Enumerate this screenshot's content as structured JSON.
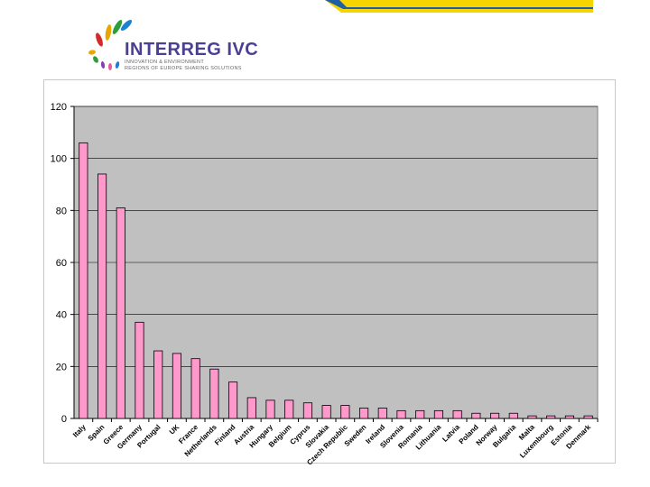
{
  "logo": {
    "name": "INTERREG IVC",
    "tagline_1": "INNOVATION & ENVIRONMENT",
    "tagline_2": "REGIONS OF EUROPE SHARING SOLUTIONS"
  },
  "colors": {
    "plot_background": "#c0c0c0",
    "bar_fill": "#ff99cc",
    "bar_stroke": "#000000",
    "band_yellow": "#f5d400",
    "band_blue": "#1f5fa6"
  },
  "chart_data": {
    "type": "bar",
    "title": "",
    "xlabel": "",
    "ylabel": "",
    "ylim": [
      0,
      120
    ],
    "yticks": [
      0,
      20,
      40,
      60,
      80,
      100,
      120
    ],
    "grid": true,
    "legend": "none",
    "categories": [
      "Italy",
      "Spain",
      "Greece",
      "Germany",
      "Portugal",
      "UK",
      "France",
      "Netherlands",
      "Finland",
      "Austria",
      "Hungary",
      "Belgium",
      "Cyprus",
      "Slovakia",
      "Czech Republic",
      "Sweden",
      "Ireland",
      "Slovenia",
      "Romania",
      "Lithuania",
      "Latvia",
      "Poland",
      "Norway",
      "Bulgaria",
      "Malta",
      "Luxembourg",
      "Estonia",
      "Denmark"
    ],
    "values": [
      106,
      94,
      81,
      37,
      26,
      25,
      23,
      19,
      14,
      8,
      7,
      7,
      6,
      5,
      5,
      4,
      4,
      3,
      3,
      3,
      3,
      2,
      2,
      2,
      1,
      1,
      1,
      1
    ]
  }
}
